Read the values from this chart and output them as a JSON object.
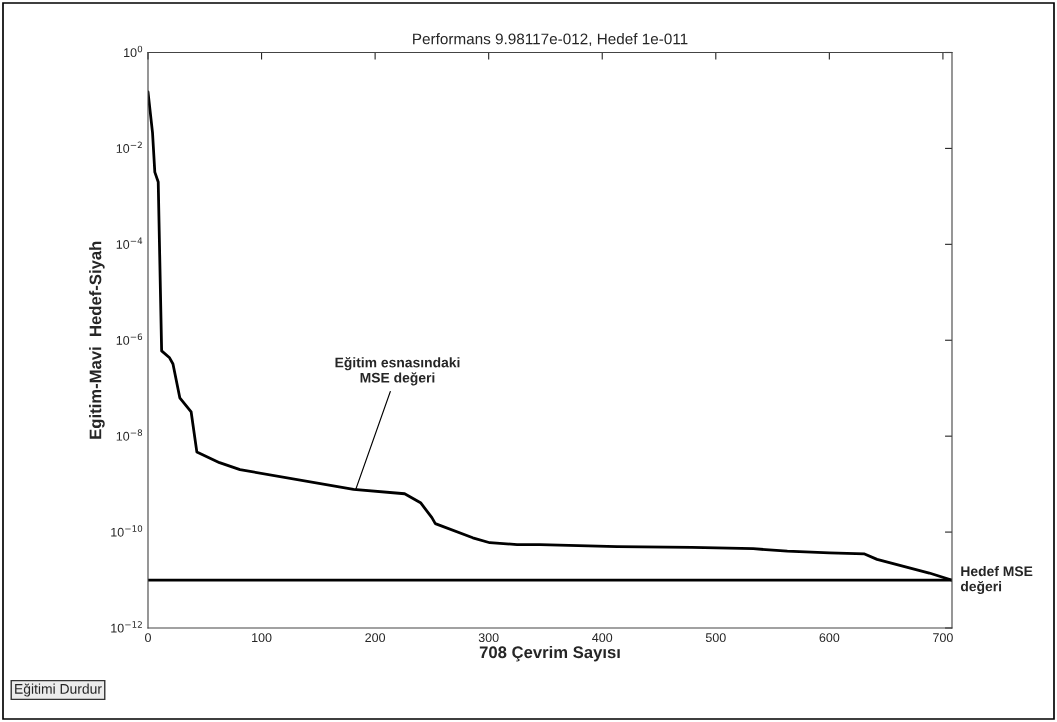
{
  "chart_data": {
    "type": "line",
    "title": "Performans 9.98117e-012, Hedef 1e-011",
    "xlabel": "708 Çevrim Sayısı",
    "ylabel": "Egitim-Mavi  Hedef-Siyah",
    "series": [
      {
        "color": "#000000",
        "x": [
          0,
          4,
          6,
          9,
          12,
          19,
          22,
          28,
          38,
          43,
          63,
          81,
          181,
          226,
          240,
          250,
          253,
          286,
          301,
          325,
          345,
          413,
          479,
          533,
          563,
          600,
          631,
          642,
          688,
          708
        ],
        "values": [
          0.15,
          0.021,
          0.0032,
          0.002,
          6e-07,
          4.3e-07,
          3.2e-07,
          6.3e-08,
          3.2e-08,
          4.7e-09,
          2.8e-09,
          2e-09,
          7.8e-10,
          6.3e-10,
          4.1e-10,
          2e-10,
          1.5e-10,
          7.6e-11,
          6e-11,
          5.5e-11,
          5.5e-11,
          5e-11,
          4.8e-11,
          4.5e-11,
          4e-11,
          3.7e-11,
          3.5e-11,
          2.7e-11,
          1.4e-11,
          9.98e-12
        ]
      }
    ],
    "log": "y",
    "xlim": [
      0,
      708
    ],
    "ylim": [
      1e-12,
      1
    ],
    "xticks": [
      0,
      100,
      200,
      300,
      400,
      500,
      600,
      700
    ],
    "yticks": [
      {
        "value": 1,
        "label": "10$^{0}$"
      },
      {
        "value": 0.01,
        "label": "10$^{−2}$"
      },
      {
        "value": 0.0001,
        "label": "10$^{−4}$"
      },
      {
        "value": 1e-06,
        "label": "10$^{−6}$"
      },
      {
        "value": 1e-08,
        "label": "10$^{−8}$"
      },
      {
        "value": 1e-10,
        "label": "10$^{−10}$"
      },
      {
        "value": 1e-12,
        "label": "10$^{−12}$"
      }
    ],
    "ref_lines": [
      {
        "axis": "y",
        "value": 1e-11,
        "label": "Hedef MSE\ndeğeri",
        "color": "#000000"
      }
    ],
    "annotations": [
      {
        "text": "Eğitim esnasındaki\nMSE değeri",
        "x": 183,
        "y": 7.8e-10
      },
      "Eğitimi Durdur"
    ],
    "grid": false,
    "legend": false,
    "line_style": "solid",
    "marker": "none"
  }
}
